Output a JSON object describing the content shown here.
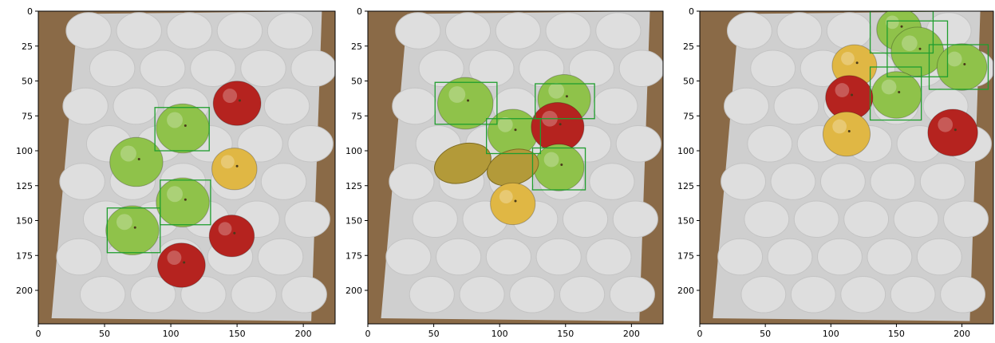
{
  "panels": [
    {
      "x_ticks": [
        "0",
        "50",
        "100",
        "150",
        "200"
      ],
      "y_ticks": [
        "0",
        "25",
        "50",
        "75",
        "100",
        "125",
        "150",
        "175",
        "200"
      ],
      "boxes": [
        {
          "x0": 88,
          "y0": 69,
          "x1": 129,
          "y1": 100
        },
        {
          "x0": 52,
          "y0": 141,
          "x1": 92,
          "y1": 173
        },
        {
          "x0": 92,
          "y0": 121,
          "x1": 130,
          "y1": 153
        }
      ],
      "fruits": [
        {
          "type": "green-apple",
          "cx": 109,
          "cy": 84,
          "r": 20
        },
        {
          "type": "green-apple",
          "cx": 74,
          "cy": 108,
          "r": 20
        },
        {
          "type": "green-apple",
          "cx": 109,
          "cy": 137,
          "r": 20
        },
        {
          "type": "green-apple",
          "cx": 71,
          "cy": 157,
          "r": 20
        },
        {
          "type": "red-apple",
          "cx": 150,
          "cy": 66,
          "r": 18
        },
        {
          "type": "yellow-apple",
          "cx": 148,
          "cy": 113,
          "r": 17
        },
        {
          "type": "red-apple",
          "cx": 146,
          "cy": 161,
          "r": 17
        },
        {
          "type": "red-apple",
          "cx": 108,
          "cy": 182,
          "r": 18
        }
      ]
    },
    {
      "x_ticks": [
        "0",
        "50",
        "100",
        "150",
        "200"
      ],
      "y_ticks": [
        "0",
        "25",
        "50",
        "75",
        "100",
        "125",
        "150",
        "175",
        "200"
      ],
      "boxes": [
        {
          "x0": 51,
          "y0": 51,
          "x1": 98,
          "y1": 81
        },
        {
          "x0": 127,
          "y0": 52,
          "x1": 172,
          "y1": 77
        },
        {
          "x0": 90,
          "y0": 77,
          "x1": 131,
          "y1": 102
        },
        {
          "x0": 125,
          "y0": 98,
          "x1": 165,
          "y1": 128
        }
      ],
      "fruits": [
        {
          "type": "green-apple",
          "cx": 74,
          "cy": 66,
          "r": 21
        },
        {
          "type": "green-apple",
          "cx": 149,
          "cy": 63,
          "r": 20
        },
        {
          "type": "green-apple",
          "cx": 110,
          "cy": 87,
          "r": 19
        },
        {
          "type": "red-apple",
          "cx": 144,
          "cy": 83,
          "r": 20
        },
        {
          "type": "green-apple",
          "cx": 145,
          "cy": 112,
          "r": 19
        },
        {
          "type": "pear",
          "cx": 72,
          "cy": 109,
          "r": 22
        },
        {
          "type": "pear",
          "cx": 110,
          "cy": 112,
          "r": 20
        },
        {
          "type": "yellow-apple",
          "cx": 110,
          "cy": 138,
          "r": 17
        }
      ]
    },
    {
      "x_ticks": [
        "0",
        "50",
        "100",
        "150",
        "200"
      ],
      "y_ticks": [
        "0",
        "25",
        "50",
        "75",
        "100",
        "125",
        "150",
        "175",
        "200"
      ],
      "boxes": [
        {
          "x0": 130,
          "y0": 0,
          "x1": 178,
          "y1": 30
        },
        {
          "x0": 143,
          "y0": 7,
          "x1": 189,
          "y1": 47
        },
        {
          "x0": 175,
          "y0": 24,
          "x1": 220,
          "y1": 56
        },
        {
          "x0": 130,
          "y0": 40,
          "x1": 169,
          "y1": 78
        }
      ],
      "fruits": [
        {
          "type": "green-apple",
          "cx": 152,
          "cy": 13,
          "r": 17
        },
        {
          "type": "green-apple",
          "cx": 166,
          "cy": 29,
          "r": 20
        },
        {
          "type": "green-apple",
          "cx": 200,
          "cy": 40,
          "r": 19
        },
        {
          "type": "green-apple",
          "cx": 150,
          "cy": 60,
          "r": 19
        },
        {
          "type": "yellow-apple",
          "cx": 118,
          "cy": 39,
          "r": 17
        },
        {
          "type": "red-apple",
          "cx": 114,
          "cy": 62,
          "r": 18
        },
        {
          "type": "yellow-apple",
          "cx": 112,
          "cy": 88,
          "r": 18
        },
        {
          "type": "red-apple",
          "cx": 193,
          "cy": 87,
          "r": 19
        }
      ]
    }
  ],
  "colors": {
    "box": "#1f9e2e",
    "tray": "#cfcfcf",
    "tray_cup": "#dedede",
    "cardboard": "#8a6a47",
    "green-apple": "#8fc24a",
    "red-apple": "#b5231f",
    "yellow-apple": "#e0b744",
    "pear": "#b39a39"
  }
}
